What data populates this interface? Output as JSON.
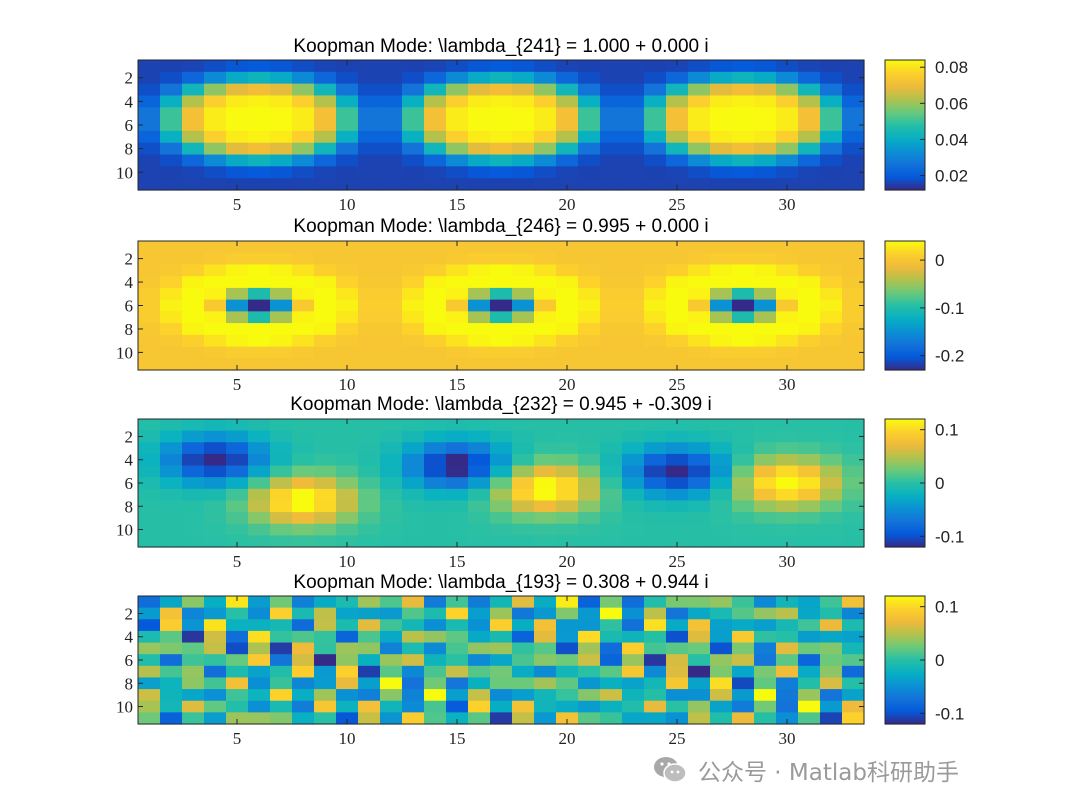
{
  "watermark": {
    "text": "公众号 · Matlab科研助手",
    "icon": "wechat-icon"
  },
  "colormap": "parula",
  "chart_data": [
    {
      "type": "heatmap",
      "title": "Koopman Mode: \\lambda_{241} = 1.000 + 0.000 i",
      "x_ticks": [
        5,
        10,
        15,
        20,
        25,
        30
      ],
      "y_ticks": [
        2,
        4,
        6,
        8,
        10
      ],
      "grid_size": [
        11,
        33
      ],
      "pattern": "blob",
      "centers_x": [
        6,
        17,
        28
      ],
      "center_y": 5.5,
      "rx": 4.6,
      "ry": 3.7,
      "clim": [
        0.012,
        0.084
      ],
      "colorbar_ticks": [
        "0.08",
        "0.06",
        "0.04",
        "0.02"
      ],
      "colorbar_values": [
        0.08,
        0.06,
        0.04,
        0.02
      ]
    },
    {
      "type": "heatmap",
      "title": "Koopman Mode: \\lambda_{246} = 0.995 + 0.000 i",
      "x_ticks": [
        5,
        10,
        15,
        20,
        25,
        30
      ],
      "y_ticks": [
        2,
        4,
        6,
        8,
        10
      ],
      "grid_size": [
        11,
        33
      ],
      "pattern": "ring",
      "centers_x": [
        6,
        17,
        28
      ],
      "center_y": 6,
      "clim": [
        -0.23,
        0.04
      ],
      "colorbar_ticks": [
        "0",
        "-0.1",
        "-0.2"
      ],
      "colorbar_values": [
        0,
        -0.1,
        -0.2
      ]
    },
    {
      "type": "heatmap",
      "title": "Koopman Mode: \\lambda_{232} = 0.945 + -0.309 i",
      "x_ticks": [
        5,
        10,
        15,
        20,
        25,
        30
      ],
      "y_ticks": [
        2,
        4,
        6,
        8,
        10
      ],
      "grid_size": [
        11,
        33
      ],
      "pattern": "dipole",
      "neg_centers": [
        [
          4,
          4
        ],
        [
          15,
          4.5
        ],
        [
          25,
          5
        ]
      ],
      "pos_centers": [
        [
          8,
          7.5
        ],
        [
          19,
          6.5
        ],
        [
          30,
          6
        ]
      ],
      "clim": [
        -0.12,
        0.12
      ],
      "colorbar_ticks": [
        "0.1",
        "0",
        "-0.1"
      ],
      "colorbar_values": [
        0.1,
        0,
        -0.1
      ]
    },
    {
      "type": "heatmap",
      "title": "Koopman Mode: \\lambda_{193} = 0.308 + 0.944 i",
      "x_ticks": [
        5,
        10,
        15,
        20,
        25,
        30
      ],
      "y_ticks": [
        2,
        4,
        6,
        8,
        10
      ],
      "grid_size": [
        11,
        33
      ],
      "pattern": "noise",
      "clim": [
        -0.12,
        0.12
      ],
      "colorbar_ticks": [
        "0.1",
        "0",
        "-0.1"
      ],
      "colorbar_values": [
        0.1,
        0,
        -0.1
      ]
    }
  ]
}
